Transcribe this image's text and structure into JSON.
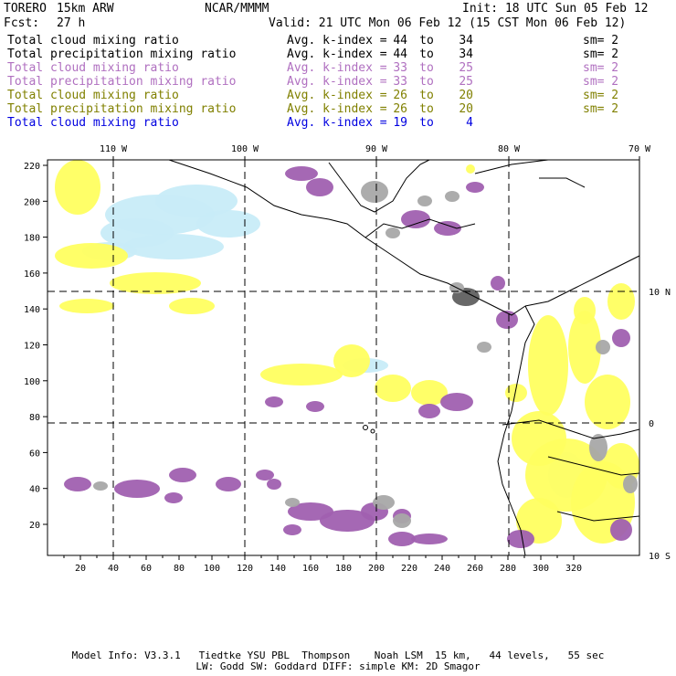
{
  "header": {
    "model": "TORERO",
    "resolution": "15km ARW",
    "org": "NCAR/MMMM",
    "init": "Init: 18 UTC Sun 05 Feb 12",
    "fcst_label": "Fcst:",
    "fcst_value": "27 h",
    "valid": "Valid: 21 UTC Mon 06 Feb 12 (15 CST Mon 06 Feb 12)"
  },
  "legend": [
    {
      "var": "Total cloud mixing ratio",
      "avg": "Avg. k-index =",
      "lo": "44",
      "to": "to",
      "hi": "34",
      "sm": "sm= 2",
      "color": "#000000"
    },
    {
      "var": "Total precipitation mixing ratio",
      "avg": "Avg. k-index =",
      "lo": "44",
      "to": "to",
      "hi": "34",
      "sm": "sm= 2",
      "color": "#000000"
    },
    {
      "var": "Total cloud mixing ratio",
      "avg": "Avg. k-index =",
      "lo": "33",
      "to": "to",
      "hi": "25",
      "sm": "sm= 2",
      "color": "#b070c0"
    },
    {
      "var": "Total precipitation mixing ratio",
      "avg": "Avg. k-index =",
      "lo": "33",
      "to": "to",
      "hi": "25",
      "sm": "sm= 2",
      "color": "#b070c0"
    },
    {
      "var": "Total cloud mixing ratio",
      "avg": "Avg. k-index =",
      "lo": "26",
      "to": "to",
      "hi": "20",
      "sm": "sm= 2",
      "color": "#808000"
    },
    {
      "var": "Total precipitation mixing ratio",
      "avg": "Avg. k-index =",
      "lo": "26",
      "to": "to",
      "hi": "20",
      "sm": "sm= 2",
      "color": "#808000"
    },
    {
      "var": "Total cloud mixing ratio",
      "avg": "Avg. k-index =",
      "lo": "19",
      "to": "to",
      "hi": "4",
      "sm": "",
      "color": "#0000e0"
    }
  ],
  "map": {
    "top_lon_labels": [
      "110 W",
      "100 W",
      "90 W",
      "80 W",
      "70 W"
    ],
    "right_lat_labels": [
      "10 N",
      "0",
      "10 S"
    ],
    "bottom_ticks": [
      "20",
      "40",
      "60",
      "80",
      "100",
      "120",
      "140",
      "160",
      "180",
      "200",
      "220",
      "240",
      "260",
      "280",
      "300",
      "320"
    ],
    "left_ticks": [
      "220",
      "200",
      "180",
      "160",
      "140",
      "120",
      "100",
      "80",
      "60",
      "40",
      "20"
    ],
    "colors": {
      "gray": "#a8a8a8",
      "purple": "#a060b0",
      "yellow": "#ffff60",
      "lightblue": "#c8ecf8",
      "dark": "#606060"
    }
  },
  "footer": {
    "line1": "Model Info: V3.3.1   Tiedtke YSU PBL  Thompson    Noah LSM  15 km,   44 levels,   55 sec",
    "line2": "LW: Godd SW: Goddard DIFF: simple KM: 2D Smagor"
  }
}
